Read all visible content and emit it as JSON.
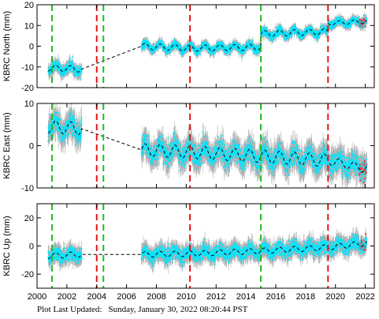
{
  "footer": {
    "label": "Plot Last Updated:",
    "value": "Sunday, January 30, 2022 08:20:44 PST"
  },
  "chart_data": [
    {
      "type": "scatter",
      "ylabel": "KBRC North (mm)",
      "xlim": [
        2000,
        2022.6
      ],
      "ylim": [
        -20,
        20
      ],
      "yticks": [
        -20,
        -10,
        0,
        10,
        20
      ],
      "xticks": [
        2000,
        2002,
        2004,
        2006,
        2008,
        2010,
        2012,
        2014,
        2016,
        2018,
        2020,
        2022
      ],
      "colors": {
        "data": "#00e5ff",
        "error": "#b0b0b0",
        "recent": "#ff2020",
        "model": "#000000",
        "steps_green": "#22bb22",
        "steps_red": "#ee1111"
      },
      "vlines_green": [
        2001.0,
        2004.45,
        2015.0
      ],
      "vlines_red": [
        2004.0,
        2010.25,
        2019.5
      ],
      "segments": [
        {
          "x": [
            2000.75,
            2003.0
          ],
          "level_start": -10.5,
          "level_end": -11.0,
          "noise": 2.0,
          "amp": 1.5
        },
        {
          "x": [
            2007.0,
            2010.25
          ],
          "level_start": 0.0,
          "level_end": -1.0,
          "noise": 1.5,
          "amp": 1.5
        },
        {
          "x": [
            2010.25,
            2015.0
          ],
          "level_start": -1.0,
          "level_end": -0.5,
          "noise": 1.5,
          "amp": 1.5
        },
        {
          "x": [
            2015.0,
            2019.5
          ],
          "level_start": 6.0,
          "level_end": 7.0,
          "noise": 1.5,
          "amp": 1.5
        },
        {
          "x": [
            2019.5,
            2022.1
          ],
          "level_start": 11.0,
          "level_end": 12.0,
          "noise": 1.5,
          "amp": 1.0
        }
      ]
    },
    {
      "type": "scatter",
      "ylabel": "KBRC East (mm)",
      "xlim": [
        2000,
        2022.6
      ],
      "ylim": [
        -10,
        10
      ],
      "yticks": [
        -10,
        0,
        10
      ],
      "xticks": [
        2000,
        2002,
        2004,
        2006,
        2008,
        2010,
        2012,
        2014,
        2016,
        2018,
        2020,
        2022
      ],
      "colors": {
        "data": "#00e5ff",
        "error": "#b0b0b0",
        "recent": "#ff2020",
        "model": "#000000",
        "steps_green": "#22bb22",
        "steps_red": "#ee1111"
      },
      "vlines_green": [
        2001.0,
        2004.45,
        2015.0
      ],
      "vlines_red": [
        2004.0,
        2010.25,
        2019.5
      ],
      "segments": [
        {
          "x": [
            2000.75,
            2003.0
          ],
          "level_start": 4.5,
          "level_end": 4.0,
          "noise": 2.0,
          "amp": 1.5
        },
        {
          "x": [
            2007.0,
            2010.25
          ],
          "level_start": -1.0,
          "level_end": -1.5,
          "noise": 2.0,
          "amp": 1.5
        },
        {
          "x": [
            2010.25,
            2015.0
          ],
          "level_start": -1.5,
          "level_end": -2.5,
          "noise": 2.0,
          "amp": 1.5
        },
        {
          "x": [
            2015.0,
            2019.5
          ],
          "level_start": -2.5,
          "level_end": -3.5,
          "noise": 2.0,
          "amp": 1.5
        },
        {
          "x": [
            2019.5,
            2022.1
          ],
          "level_start": -3.5,
          "level_end": -5.5,
          "noise": 2.0,
          "amp": 1.0
        }
      ]
    },
    {
      "type": "scatter",
      "ylabel": "KBRC Up (mm)",
      "xlim": [
        2000,
        2022.6
      ],
      "ylim": [
        -30,
        30
      ],
      "yticks": [
        -20,
        0,
        20
      ],
      "xticks": [
        2000,
        2002,
        2004,
        2006,
        2008,
        2010,
        2012,
        2014,
        2016,
        2018,
        2020,
        2022
      ],
      "xticklabels": [
        "2000",
        "2002",
        "2004",
        "2006",
        "2008",
        "2010",
        "2012",
        "2014",
        "2016",
        "2018",
        "2020",
        "2022"
      ],
      "colors": {
        "data": "#00e5ff",
        "error": "#b0b0b0",
        "recent": "#ff2020",
        "model": "#000000",
        "steps_green": "#22bb22",
        "steps_red": "#ee1111"
      },
      "vlines_green": [
        2001.0,
        2004.45,
        2015.0
      ],
      "vlines_red": [
        2004.0,
        2010.25,
        2019.5
      ],
      "segments": [
        {
          "x": [
            2000.75,
            2003.0
          ],
          "level_start": -7.0,
          "level_end": -6.0,
          "noise": 4.0,
          "amp": 2.0
        },
        {
          "x": [
            2007.0,
            2010.25
          ],
          "level_start": -6.0,
          "level_end": -5.5,
          "noise": 4.0,
          "amp": 2.0
        },
        {
          "x": [
            2010.25,
            2015.0
          ],
          "level_start": -5.5,
          "level_end": -3.5,
          "noise": 4.0,
          "amp": 2.0
        },
        {
          "x": [
            2015.0,
            2019.5
          ],
          "level_start": -3.5,
          "level_end": -1.0,
          "noise": 4.0,
          "amp": 2.0
        },
        {
          "x": [
            2019.5,
            2022.1
          ],
          "level_start": -1.0,
          "level_end": 2.0,
          "noise": 4.0,
          "amp": 2.0
        }
      ]
    }
  ]
}
